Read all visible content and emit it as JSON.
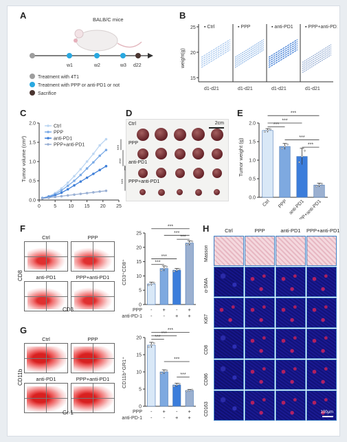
{
  "panels": {
    "A": {
      "label": "A",
      "mouse_label": "BALB/C mice",
      "timeline_ticks": [
        "w1",
        "w2",
        "w3",
        "d22"
      ],
      "legend": [
        {
          "text": "Treatment with 4T1",
          "color": "#9e9e9e"
        },
        {
          "text": "Treatment with PPP or anti-PD1 or not",
          "color": "#29a8e0"
        },
        {
          "text": "Sacrifice",
          "color": "#4a3530"
        }
      ]
    },
    "B": {
      "label": "B",
      "ylabel": "weight(g)",
      "yticks": [
        "25",
        "20",
        "15"
      ],
      "xlabel": "d1-d21",
      "groups": [
        {
          "name": "Ctrl",
          "color": "#a8c8ee"
        },
        {
          "name": "PPP",
          "color": "#8ab4e6"
        },
        {
          "name": "anti-PD1",
          "color": "#3b7bd6"
        },
        {
          "name": "PPP+anti-PD1",
          "color": "#8fa8d0"
        }
      ]
    },
    "C": {
      "label": "C",
      "significance": [
        "***",
        "***",
        "***",
        "***"
      ]
    },
    "D": {
      "label": "D",
      "scale_text": "2cm",
      "rows": [
        "Ctrl",
        "PPP",
        "anti-PD1",
        "PPP+anti-PD1"
      ]
    },
    "E": {
      "label": "E"
    },
    "F": {
      "label": "F",
      "plots": [
        "Ctrl",
        "PPP",
        "anti-PD1",
        "PPP+anti-PD1"
      ],
      "xaxis": "CD3",
      "yaxis": "CD8"
    },
    "G": {
      "label": "G",
      "plots": [
        "Ctrl",
        "PPP",
        "anti-PD1",
        "PPP+anti-PD1"
      ],
      "xaxis": "Gr-1",
      "yaxis": "CD11b"
    },
    "H": {
      "label": "H",
      "columns": [
        "Ctrl",
        "PPP",
        "anti-PD1",
        "PPP+anti-PD1"
      ],
      "rows": [
        "Masson",
        "α-SMA",
        "Ki67",
        "CD8",
        "CD86",
        "CD163"
      ],
      "scale_text": "100μm"
    }
  },
  "chart_data": [
    {
      "id": "C",
      "type": "line",
      "title": "",
      "xlabel": "Time (d)",
      "ylabel": "Tumor volume (cm³)",
      "xlim": [
        0,
        25
      ],
      "ylim": [
        0,
        2.0
      ],
      "xticks": [
        0,
        5,
        10,
        15,
        20,
        25
      ],
      "yticks": [
        0,
        0.5,
        1.0,
        1.5,
        2.0
      ],
      "x": [
        1,
        3,
        5,
        7,
        9,
        11,
        13,
        15,
        17,
        19,
        21
      ],
      "series": [
        {
          "name": "Ctrl",
          "color": "#bcd6f2",
          "values": [
            0.05,
            0.1,
            0.18,
            0.3,
            0.45,
            0.62,
            0.8,
            1.0,
            1.2,
            1.42,
            1.58
          ]
        },
        {
          "name": "PPP",
          "color": "#7aaae6",
          "values": [
            0.05,
            0.09,
            0.15,
            0.25,
            0.37,
            0.5,
            0.65,
            0.82,
            0.98,
            1.15,
            1.3
          ]
        },
        {
          "name": "anti-PD1",
          "color": "#3f7fd8",
          "values": [
            0.05,
            0.08,
            0.12,
            0.19,
            0.28,
            0.38,
            0.48,
            0.58,
            0.68,
            0.78,
            0.88
          ]
        },
        {
          "name": "PPP+anti-PD1",
          "color": "#9ab0d4",
          "values": [
            0.04,
            0.06,
            0.08,
            0.1,
            0.12,
            0.14,
            0.16,
            0.18,
            0.2,
            0.22,
            0.24
          ]
        }
      ]
    },
    {
      "id": "E",
      "type": "bar",
      "title": "",
      "ylabel": "Tumor weight (g)",
      "ylim": [
        0,
        2.0
      ],
      "yticks": [
        0,
        0.5,
        1.0,
        1.5,
        2.0
      ],
      "categories": [
        "Ctrl",
        "PPP",
        "anti-PD1",
        "PPP+anti-PD1"
      ],
      "values": [
        1.8,
        1.37,
        1.1,
        0.33
      ],
      "errors": [
        0.05,
        0.08,
        0.22,
        0.05
      ],
      "colors": [
        "#d9e8f7",
        "#7ea9e0",
        "#3b7ddb",
        "#9bb0d0"
      ],
      "significance": [
        "***",
        "***",
        "***",
        "***",
        "***"
      ]
    },
    {
      "id": "F",
      "type": "bar",
      "title": "",
      "ylabel": "CD3⁺CD8⁺",
      "ylim": [
        0,
        25
      ],
      "yticks": [
        0,
        5,
        10,
        15,
        20,
        25
      ],
      "categories": [
        "Ctrl",
        "PPP",
        "anti-PD1",
        "PPP+anti-PD1"
      ],
      "values": [
        7.2,
        12.6,
        12.0,
        21.5
      ],
      "errors": [
        0.6,
        0.9,
        0.6,
        0.8
      ],
      "colors": [
        "#d9e8f7",
        "#7ea9e0",
        "#3b7ddb",
        "#9bb0d0"
      ],
      "treatment_rows": [
        {
          "label": "PPP",
          "marks": [
            "-",
            "+",
            "-",
            "+"
          ]
        },
        {
          "label": "anti-PD-1",
          "marks": [
            "-",
            "-",
            "+",
            "+"
          ]
        }
      ],
      "significance": [
        "***",
        "***",
        "***",
        "***",
        "***"
      ]
    },
    {
      "id": "G",
      "type": "bar",
      "title": "",
      "ylabel": "CD11b⁺GR1⁺",
      "ylim": [
        0,
        20
      ],
      "yticks": [
        0,
        5,
        10,
        15,
        20
      ],
      "categories": [
        "Ctrl",
        "PPP",
        "anti-PD1",
        "PPP+anti-PD1"
      ],
      "values": [
        17.8,
        10.0,
        6.2,
        4.6
      ],
      "errors": [
        0.8,
        0.6,
        0.5,
        0.3
      ],
      "colors": [
        "#d9e8f7",
        "#7ea9e0",
        "#3b7ddb",
        "#9bb0d0"
      ],
      "treatment_rows": [
        {
          "label": "PPP",
          "marks": [
            "-",
            "+",
            "-",
            "+"
          ]
        },
        {
          "label": "anti-PD-1",
          "marks": [
            "-",
            "-",
            "+",
            "+"
          ]
        }
      ],
      "significance": [
        "***",
        "***",
        "***",
        "***",
        "***"
      ]
    }
  ]
}
